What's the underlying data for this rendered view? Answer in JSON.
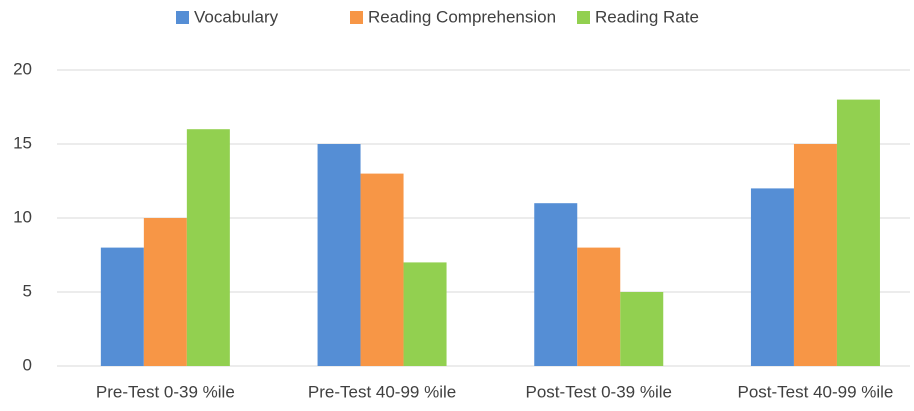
{
  "chart_data": {
    "type": "bar",
    "categories": [
      "Pre-Test 0-39 %ile",
      "Pre-Test 40-99 %ile",
      "Post-Test 0-39 %ile",
      "Post-Test 40-99 %ile"
    ],
    "series": [
      {
        "name": "Vocabulary",
        "color": "#558ed5",
        "values": [
          8,
          15,
          11,
          12
        ]
      },
      {
        "name": "Reading Comprehension",
        "color": "#f79646",
        "values": [
          10,
          13,
          8,
          15
        ]
      },
      {
        "name": "Reading Rate",
        "color": "#92d050",
        "values": [
          16,
          7,
          5,
          18
        ]
      }
    ],
    "ylim": [
      0,
      20
    ],
    "yticks": [
      0,
      5,
      10,
      15,
      20
    ],
    "grid": true,
    "legend": "top"
  }
}
